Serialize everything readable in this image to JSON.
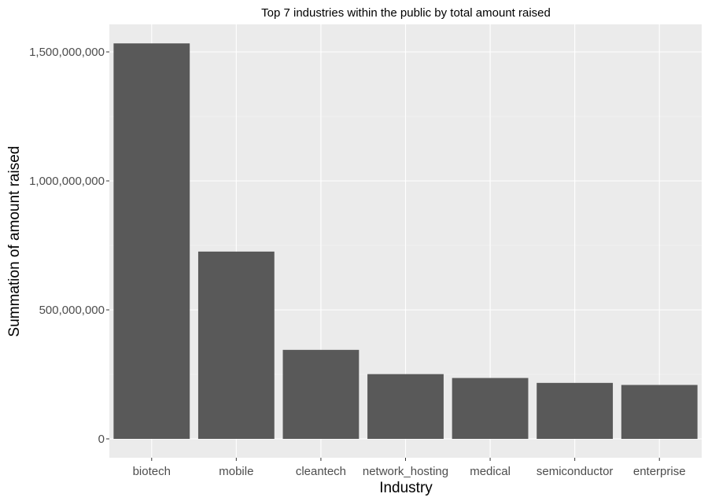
{
  "chart_data": {
    "type": "bar",
    "title": "Top 7 industries within the public by total amount raised",
    "xlabel": "Industry",
    "ylabel": "Summation of amount raised",
    "categories": [
      "biotech",
      "mobile",
      "cleantech",
      "network_hosting",
      "medical",
      "semiconductor",
      "enterprise"
    ],
    "values": [
      1533000000,
      726000000,
      345000000,
      251000000,
      236000000,
      217000000,
      209000000
    ],
    "ylim": [
      0,
      1600000000
    ],
    "yticks": [
      0,
      500000000,
      1000000000,
      1500000000
    ],
    "ytick_labels": [
      "0",
      "500,000,000",
      "1,000,000,000",
      "1,500,000,000"
    ],
    "bar_color": "#595959",
    "panel_color": "#ebebeb",
    "grid": true,
    "legend": "none"
  }
}
